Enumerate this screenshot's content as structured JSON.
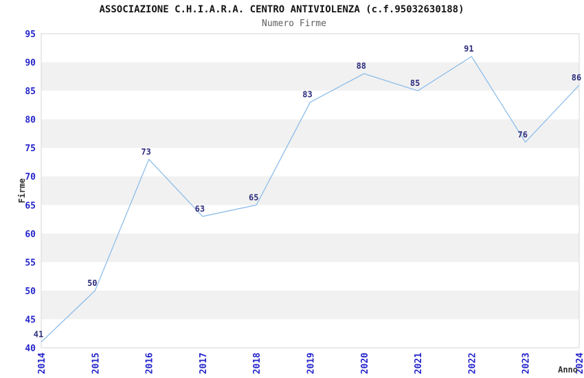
{
  "figure": {
    "title": "ASSOCIAZIONE C.H.I.A.R.A. CENTRO ANTIVIOLENZA (c.f.95032630188)",
    "subtitle": "Numero Firme"
  },
  "chart_data": {
    "type": "line",
    "title": "ASSOCIAZIONE C.H.I.A.R.A. CENTRO ANTIVIOLENZA (c.f.95032630188)",
    "subtitle": "Numero Firme",
    "xlabel": "Anno",
    "ylabel": "Firme",
    "categories": [
      2014,
      2015,
      2016,
      2017,
      2018,
      2019,
      2020,
      2021,
      2022,
      2023,
      2024
    ],
    "values": [
      41,
      50,
      73,
      63,
      65,
      83,
      88,
      85,
      91,
      76,
      86
    ],
    "ylim": [
      40,
      95
    ],
    "ytick_step": 5,
    "yticks": [
      40,
      45,
      50,
      55,
      60,
      65,
      70,
      75,
      80,
      85,
      90,
      95
    ],
    "grid": "alternating-horizontal-bands",
    "legend": "none",
    "data_labels_visible": true,
    "colors": {
      "line": "#85b9e9",
      "tick_label": "#2424cc",
      "data_label": "#2e2e7e",
      "band": "#f1f1f1",
      "plot_border": "#d6d6d6",
      "title": "#141414",
      "subtitle": "#5f5f5f",
      "axis_label": "#303030",
      "background": "#ffffff"
    }
  }
}
